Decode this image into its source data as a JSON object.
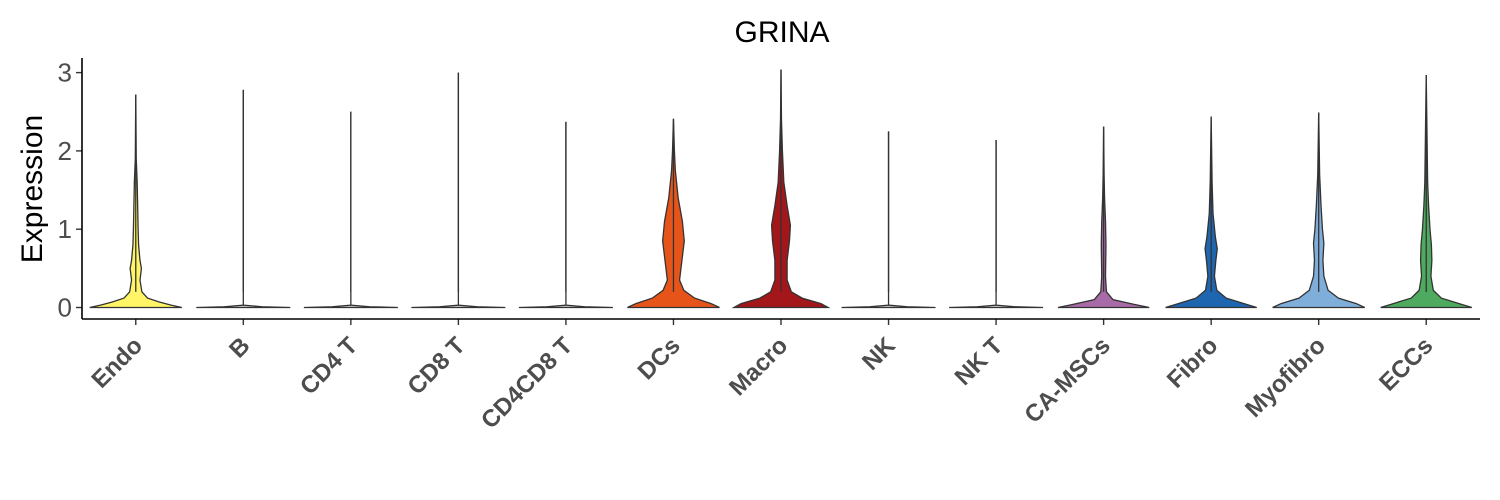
{
  "chart_data": {
    "type": "violin",
    "title": "GRINA",
    "xlabel": "",
    "ylabel": "Expression",
    "ylim": [
      -0.1,
      3.2
    ],
    "yticks": [
      0,
      1,
      2,
      3
    ],
    "grid": false,
    "legend": "none",
    "categories": [
      "Endo",
      "B",
      "CD4 T",
      "CD8 T",
      "CD4CD8 T",
      "DCs",
      "Macro",
      "NK",
      "NK T",
      "CA-MSCs",
      "Fibro",
      "Myofibro",
      "ECCs"
    ],
    "colors": [
      "#FFF566",
      "#C8C8C8",
      "#C8C8C8",
      "#C8C8C8",
      "#C8C8C8",
      "#E6541A",
      "#A3161A",
      "#C8C8C8",
      "#C8C8C8",
      "#A86BA8",
      "#1F66B0",
      "#7FAEDB",
      "#4DAA5F"
    ],
    "max_values": [
      2.72,
      2.78,
      2.5,
      3.0,
      2.37,
      2.41,
      3.04,
      2.25,
      2.14,
      2.31,
      2.44,
      2.49,
      2.97
    ],
    "density_profiles": [
      [
        [
          0,
          0.98
        ],
        [
          0.03,
          0.75
        ],
        [
          0.07,
          0.5
        ],
        [
          0.12,
          0.25
        ],
        [
          0.2,
          0.13
        ],
        [
          0.35,
          0.09
        ],
        [
          0.5,
          0.12
        ],
        [
          0.6,
          0.09
        ],
        [
          0.8,
          0.06
        ],
        [
          1.0,
          0.05
        ],
        [
          1.3,
          0.04
        ],
        [
          1.6,
          0.03
        ],
        [
          1.9,
          0.01
        ],
        [
          2.72,
          0.0
        ]
      ],
      [
        [
          0,
          1.0
        ],
        [
          0.01,
          0.4
        ],
        [
          0.03,
          0.0
        ],
        [
          2.78,
          0.0
        ]
      ],
      [
        [
          0,
          1.0
        ],
        [
          0.01,
          0.4
        ],
        [
          0.03,
          0.0
        ],
        [
          2.5,
          0.0
        ]
      ],
      [
        [
          0,
          1.0
        ],
        [
          0.01,
          0.4
        ],
        [
          0.03,
          0.0
        ],
        [
          3.0,
          0.0
        ]
      ],
      [
        [
          0,
          1.0
        ],
        [
          0.01,
          0.4
        ],
        [
          0.03,
          0.0
        ],
        [
          2.37,
          0.0
        ]
      ],
      [
        [
          0,
          0.98
        ],
        [
          0.05,
          0.8
        ],
        [
          0.12,
          0.45
        ],
        [
          0.22,
          0.22
        ],
        [
          0.35,
          0.13
        ],
        [
          0.55,
          0.17
        ],
        [
          0.85,
          0.23
        ],
        [
          1.1,
          0.19
        ],
        [
          1.4,
          0.1
        ],
        [
          1.75,
          0.04
        ],
        [
          2.0,
          0.02
        ],
        [
          2.41,
          0.0
        ]
      ],
      [
        [
          0,
          1.0
        ],
        [
          0.05,
          0.85
        ],
        [
          0.12,
          0.45
        ],
        [
          0.2,
          0.22
        ],
        [
          0.35,
          0.13
        ],
        [
          0.6,
          0.13
        ],
        [
          0.85,
          0.18
        ],
        [
          1.05,
          0.2
        ],
        [
          1.3,
          0.13
        ],
        [
          1.6,
          0.06
        ],
        [
          2.0,
          0.03
        ],
        [
          2.4,
          0.01
        ],
        [
          3.04,
          0.0
        ]
      ],
      [
        [
          0,
          1.0
        ],
        [
          0.01,
          0.4
        ],
        [
          0.03,
          0.0
        ],
        [
          2.25,
          0.0
        ]
      ],
      [
        [
          0,
          1.0
        ],
        [
          0.01,
          0.4
        ],
        [
          0.03,
          0.0
        ],
        [
          2.14,
          0.0
        ]
      ],
      [
        [
          0,
          0.97
        ],
        [
          0.04,
          0.65
        ],
        [
          0.1,
          0.2
        ],
        [
          0.2,
          0.06
        ],
        [
          0.4,
          0.04
        ],
        [
          0.8,
          0.05
        ],
        [
          1.1,
          0.04
        ],
        [
          1.4,
          0.02
        ],
        [
          1.7,
          0.01
        ],
        [
          2.31,
          0.0
        ]
      ],
      [
        [
          0,
          0.97
        ],
        [
          0.05,
          0.7
        ],
        [
          0.12,
          0.32
        ],
        [
          0.22,
          0.12
        ],
        [
          0.4,
          0.07
        ],
        [
          0.6,
          0.1
        ],
        [
          0.75,
          0.13
        ],
        [
          0.9,
          0.09
        ],
        [
          1.2,
          0.04
        ],
        [
          1.6,
          0.02
        ],
        [
          2.44,
          0.0
        ]
      ],
      [
        [
          0,
          0.98
        ],
        [
          0.05,
          0.8
        ],
        [
          0.12,
          0.42
        ],
        [
          0.22,
          0.2
        ],
        [
          0.4,
          0.11
        ],
        [
          0.6,
          0.09
        ],
        [
          0.82,
          0.11
        ],
        [
          1.0,
          0.08
        ],
        [
          1.3,
          0.05
        ],
        [
          1.7,
          0.02
        ],
        [
          2.49,
          0.0
        ]
      ],
      [
        [
          0,
          0.97
        ],
        [
          0.05,
          0.7
        ],
        [
          0.12,
          0.32
        ],
        [
          0.22,
          0.15
        ],
        [
          0.4,
          0.1
        ],
        [
          0.6,
          0.12
        ],
        [
          0.8,
          0.11
        ],
        [
          1.0,
          0.08
        ],
        [
          1.3,
          0.05
        ],
        [
          1.6,
          0.03
        ],
        [
          2.97,
          0.0
        ]
      ]
    ]
  }
}
